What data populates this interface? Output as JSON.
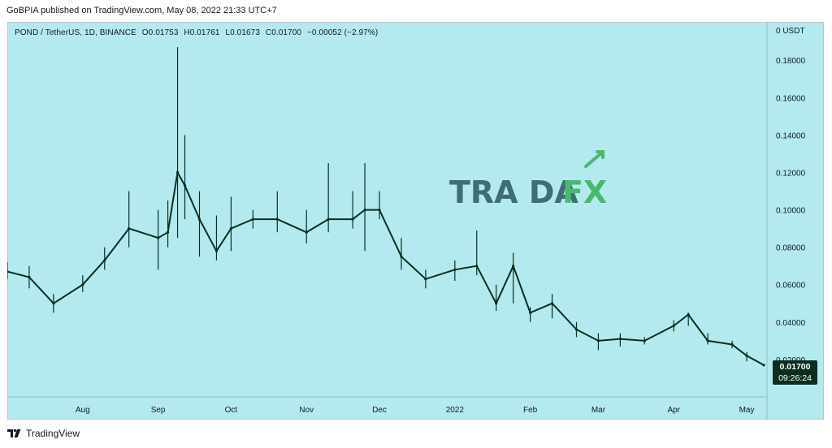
{
  "header": {
    "published_line": "GoBPIA published on TradingView.com, May 08, 2022 21:33 UTC+7"
  },
  "legend": {
    "symbol": "POND / TetherUS, 1D, BINANCE",
    "open": "O0.01753",
    "high": "H0.01761",
    "low": "L0.01673",
    "close": "C0.01700",
    "change": "−0.00052 (−2.97%)"
  },
  "last_price": {
    "value": "0.01700",
    "countdown": "09:26:24"
  },
  "watermark": {
    "text_a": "TRA DA",
    "text_b": "FX"
  },
  "footer": {
    "brand": "TradingView"
  },
  "colors": {
    "background": "#b3eaf0",
    "candles": "#0b2e1e",
    "watermark_dark": "#3f6e73",
    "watermark_accent": "#4ab86a"
  },
  "chart_data": {
    "type": "line",
    "title": "POND / TetherUS, 1D, BINANCE",
    "y_unit": "USDT",
    "y_tick_labels": [
      "0 USDT",
      "0.18000",
      "0.16000",
      "0.14000",
      "0.12000",
      "0.10000",
      "0.08000",
      "0.06000",
      "0.04000",
      "0.02000"
    ],
    "ylim": [
      0.0,
      0.2005
    ],
    "x_tick_labels": [
      "Aug",
      "Sep",
      "Oct",
      "Nov",
      "Dec",
      "2022",
      "Feb",
      "Mar",
      "Apr",
      "May"
    ],
    "grid": false,
    "x": [
      "2021-07-01",
      "2021-07-10",
      "2021-07-20",
      "2021-08-01",
      "2021-08-10",
      "2021-08-20",
      "2021-09-01",
      "2021-09-05",
      "2021-09-09",
      "2021-09-12",
      "2021-09-18",
      "2021-09-25",
      "2021-10-01",
      "2021-10-10",
      "2021-10-20",
      "2021-11-01",
      "2021-11-10",
      "2021-11-20",
      "2021-11-25",
      "2021-12-01",
      "2021-12-10",
      "2021-12-20",
      "2022-01-01",
      "2022-01-10",
      "2022-01-18",
      "2022-01-25",
      "2022-02-01",
      "2022-02-10",
      "2022-02-20",
      "2022-03-01",
      "2022-03-10",
      "2022-03-20",
      "2022-04-01",
      "2022-04-07",
      "2022-04-15",
      "2022-04-25",
      "2022-05-01",
      "2022-05-08"
    ],
    "series": [
      {
        "values": [
          0.067,
          0.064,
          0.05,
          0.06,
          0.073,
          0.09,
          0.085,
          0.088,
          0.12,
          0.113,
          0.095,
          0.078,
          0.09,
          0.095,
          0.095,
          0.088,
          0.095,
          0.095,
          0.1,
          0.1,
          0.075,
          0.063,
          0.068,
          0.07,
          0.05,
          0.07,
          0.045,
          0.05,
          0.036,
          0.03,
          0.031,
          0.03,
          0.038,
          0.044,
          0.03,
          0.028,
          0.022,
          0.017
        ],
        "high": [
          0.072,
          0.07,
          0.055,
          0.065,
          0.08,
          0.11,
          0.1,
          0.105,
          0.187,
          0.14,
          0.11,
          0.097,
          0.107,
          0.1,
          0.11,
          0.1,
          0.125,
          0.11,
          0.125,
          0.11,
          0.085,
          0.068,
          0.073,
          0.089,
          0.06,
          0.077,
          0.048,
          0.055,
          0.04,
          0.034,
          0.034,
          0.032,
          0.041,
          0.045,
          0.034,
          0.03,
          0.024,
          0.01761
        ],
        "low": [
          0.063,
          0.058,
          0.045,
          0.056,
          0.068,
          0.08,
          0.068,
          0.08,
          0.085,
          0.095,
          0.075,
          0.073,
          0.078,
          0.09,
          0.088,
          0.082,
          0.088,
          0.09,
          0.078,
          0.095,
          0.068,
          0.058,
          0.062,
          0.065,
          0.046,
          0.05,
          0.04,
          0.042,
          0.032,
          0.025,
          0.027,
          0.028,
          0.035,
          0.038,
          0.028,
          0.026,
          0.019,
          0.01673
        ]
      }
    ]
  }
}
